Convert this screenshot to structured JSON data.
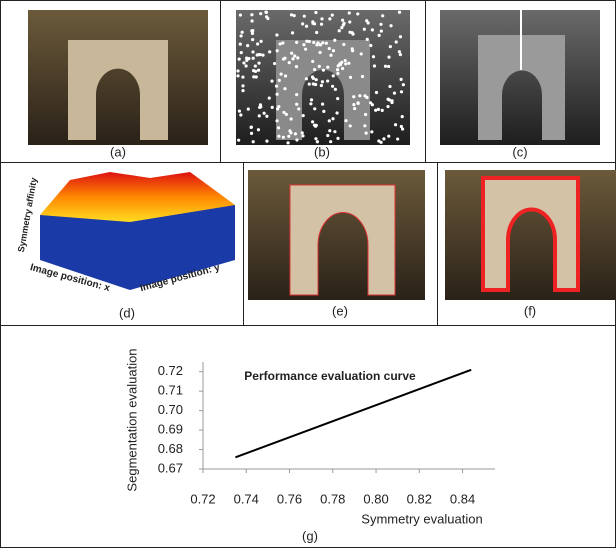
{
  "captions": [
    "(a)",
    "(b)",
    "(c)",
    "(d)",
    "(e)",
    "(f)"
  ],
  "plot3d": {
    "z_label": "Symmetry affinity",
    "x_label": "Image position: x",
    "y_label": "Image position: y"
  },
  "chart_data": {
    "type": "line",
    "title": "Performance evaluation curve",
    "x_label": "Symmetry evaluation",
    "y_label": "Segmentation evaluation",
    "caption": "(g)",
    "x": [
      0.735,
      0.844
    ],
    "series": [
      {
        "name": null,
        "color": "#000000",
        "values": [
          0.676,
          0.721
        ]
      }
    ],
    "xlim": [
      0.72,
      0.855
    ],
    "ylim": [
      0.67,
      0.725
    ],
    "xticks": [
      0.72,
      0.74,
      0.76,
      0.78,
      {
        "value": 0.8,
        "label": "0.80"
      },
      0.82,
      0.84
    ],
    "yticks": [
      0.67,
      0.68,
      0.69,
      {
        "value": 0.7,
        "label": "0.70"
      },
      0.71,
      0.72
    ],
    "grid": false
  }
}
